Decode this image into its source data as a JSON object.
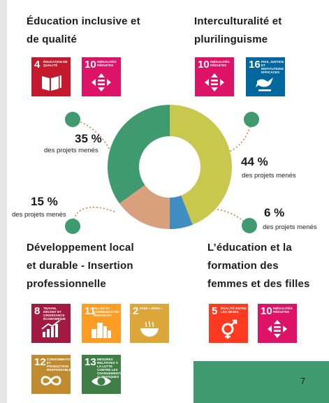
{
  "headings": {
    "education": [
      "Éducation inclusive et",
      "de qualité"
    ],
    "intercultural": [
      "Interculturalité et",
      "plurilinguisme"
    ],
    "development": [
      "Développement local",
      "et durable - Insertion",
      "professionnelle"
    ],
    "girls": [
      "L’éducation et la",
      "formation des",
      "femmes et des filles"
    ]
  },
  "sdg_tiles": [
    {
      "num": "4",
      "label": "Éducation de qualité",
      "color": "#c5192d",
      "icon": "book-pencil-icon"
    },
    {
      "num": "10",
      "label": "Inégalités réduites",
      "color": "#dd1367",
      "icon": "equality-arrows-icon"
    },
    {
      "num": "10",
      "label": "Inégalités réduites",
      "color": "#dd1367",
      "icon": "equality-arrows-icon"
    },
    {
      "num": "16",
      "label": "Paix, justice et institutions efficaces",
      "color": "#00689d",
      "icon": "dove-gavel-icon"
    },
    {
      "num": "8",
      "label": "Travail décent et croissance économique",
      "color": "#a21942",
      "icon": "growth-chart-icon"
    },
    {
      "num": "11",
      "label": "Villes et communautés durables",
      "color": "#fd9d24",
      "icon": "city-buildings-icon"
    },
    {
      "num": "2",
      "label": "Faim « zéro »",
      "color": "#dda63a",
      "icon": "food-bowl-icon"
    },
    {
      "num": "12",
      "label": "Consommation et production responsables",
      "color": "#bf8b2e",
      "icon": "infinity-icon"
    },
    {
      "num": "13",
      "label": "Mesures relatives à la lutte contre les changements climatiques",
      "color": "#3f7e44",
      "icon": "eye-globe-icon"
    },
    {
      "num": "5",
      "label": "Égalité entre les sexes",
      "color": "#ff3a21",
      "icon": "gender-equality-icon"
    },
    {
      "num": "10",
      "label": "Inégalités réduites",
      "color": "#dd1367",
      "icon": "equality-arrows-icon"
    }
  ],
  "callouts": {
    "c35": {
      "pct": "35 %",
      "sub": "des projets menés"
    },
    "c44": {
      "pct": "44 %",
      "sub": "des projets menés"
    },
    "c15": {
      "pct": "15 %",
      "sub": "des projets menés"
    },
    "c6": {
      "pct": "6 %",
      "sub": "des projets menés"
    }
  },
  "chart_data": {
    "type": "pie",
    "donut": true,
    "categories": [
      "Interculturalité et plurilinguisme",
      "L’éducation et la formation des femmes et des filles",
      "Développement local et durable - Insertion professionnelle",
      "Éducation inclusive et de qualité"
    ],
    "values": [
      44,
      6,
      15,
      35
    ],
    "colors": [
      "#c9c84e",
      "#3f8dc1",
      "#d9a07d",
      "#3f9a70"
    ],
    "marker_color": "#3f9a70",
    "connector_color": "#e07b35"
  },
  "page_number": "7",
  "colors": {
    "footer": "#3f9a70",
    "rail": "#e6e6e6"
  }
}
